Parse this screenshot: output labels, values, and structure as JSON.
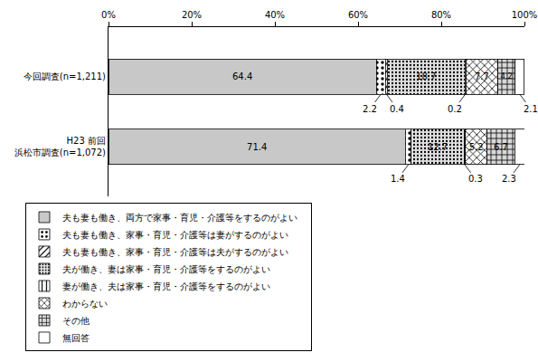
{
  "chart_data": {
    "type": "bar",
    "orientation": "horizontal",
    "stacked": true,
    "data_labels": true,
    "grid": false,
    "legend": "bottom",
    "categories": [
      "今回調査(n=1,211)",
      "H23 前回\n浜松市調査(n=1,072)"
    ],
    "xlim": [
      0,
      100
    ],
    "xticks": [
      {
        "value": 0,
        "label": "0%"
      },
      {
        "value": 20,
        "label": "20%"
      },
      {
        "value": 40,
        "label": "40%"
      },
      {
        "value": 60,
        "label": "60%"
      },
      {
        "value": 80,
        "label": "80%"
      },
      {
        "value": 100,
        "label": "100%"
      }
    ],
    "series": [
      {
        "name": "夫も妻も働き、両方で家事・育児・介護等をするのがよい",
        "color": "#c8c8c8",
        "marker": "solid",
        "values": [
          64.4,
          71.4
        ]
      },
      {
        "name": "夫も妻も働き、家事・育児・介護等は妻がするのがよい",
        "color": "#ffffff",
        "marker": "dots",
        "values": [
          2.2,
          1.4
        ]
      },
      {
        "name": "夫も妻も働き、家事・育児・介護等は夫がするのがよい",
        "color": "#ffffff",
        "marker": "slash",
        "values": [
          0.4,
          0
        ],
        "value_labels": [
          "0.4",
          null
        ]
      },
      {
        "name": "夫が働き、妻は家事・育児・介護等をするのがよい",
        "color": "#e0e0e0",
        "marker": "dense_dots",
        "values": [
          18.7,
          12.7
        ]
      },
      {
        "name": "妻が働き、夫は家事・育児・介護等をするのがよい",
        "color": "#ffffff",
        "marker": "vertical",
        "values": [
          0.2,
          0.3
        ]
      },
      {
        "name": "わからない",
        "color": "#ffffff",
        "marker": "cross",
        "values": [
          7.7,
          5.2
        ]
      },
      {
        "name": "その他",
        "color": "#d8d8d8",
        "marker": "grid",
        "values": [
          4.2,
          6.7
        ]
      },
      {
        "name": "無回答",
        "color": "#ffffff",
        "marker": "solid",
        "values": [
          2.1,
          2.3
        ]
      }
    ]
  }
}
